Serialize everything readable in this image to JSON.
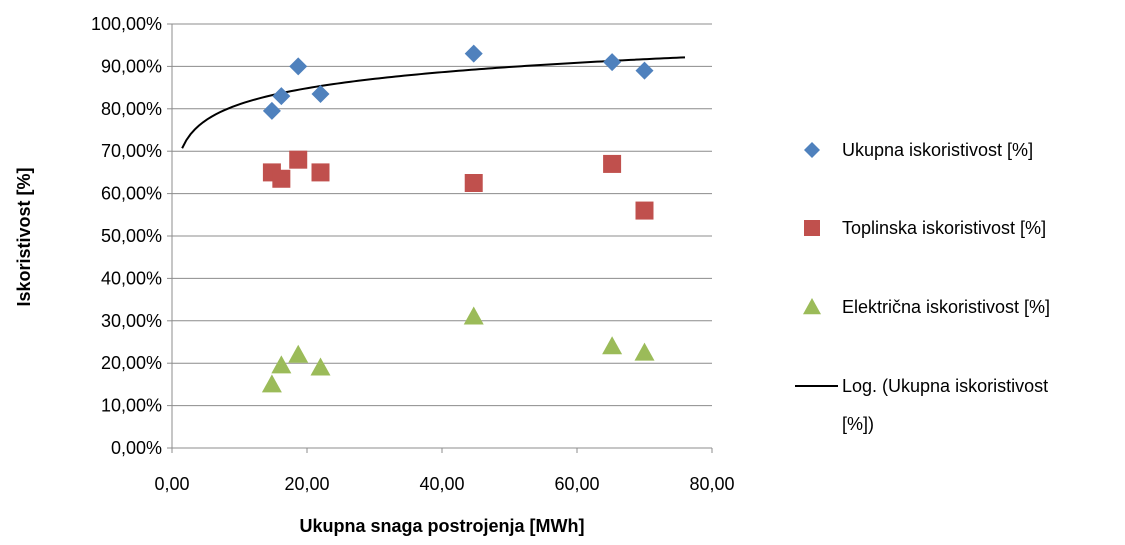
{
  "chart_data": {
    "type": "scatter",
    "xlabel": "Ukupna snaga postrojenja [MWh]",
    "ylabel": "Iskoristivost [%]",
    "xlim": [
      0,
      80
    ],
    "ylim": [
      0,
      100
    ],
    "x_ticks": [
      "0,00",
      "20,00",
      "40,00",
      "60,00",
      "80,00"
    ],
    "y_ticks": [
      "0,00%",
      "10,00%",
      "20,00%",
      "30,00%",
      "40,00%",
      "50,00%",
      "60,00%",
      "70,00%",
      "80,00%",
      "90,00%",
      "100,00%"
    ],
    "grid": "horizontal",
    "legend_position": "right",
    "series": [
      {
        "name": "Ukupna iskoristivost [%]",
        "marker": "diamond",
        "color": "#4f81bd",
        "points": [
          [
            14.8,
            79.5
          ],
          [
            16.2,
            83.0
          ],
          [
            18.7,
            90.0
          ],
          [
            22.0,
            83.5
          ],
          [
            44.7,
            93.0
          ],
          [
            65.2,
            91.0
          ],
          [
            70.0,
            89.0
          ]
        ]
      },
      {
        "name": "Toplinska iskoristivost [%]",
        "marker": "square",
        "color": "#c0504d",
        "points": [
          [
            14.8,
            65.0
          ],
          [
            16.2,
            63.5
          ],
          [
            18.7,
            68.0
          ],
          [
            22.0,
            65.0
          ],
          [
            44.7,
            62.5
          ],
          [
            65.2,
            67.0
          ],
          [
            70.0,
            56.0
          ]
        ]
      },
      {
        "name": "Električna iskoristivost [%]",
        "marker": "triangle",
        "color": "#9bbb59",
        "points": [
          [
            14.8,
            15.0
          ],
          [
            16.2,
            19.5
          ],
          [
            18.7,
            22.0
          ],
          [
            22.0,
            19.0
          ],
          [
            44.7,
            31.0
          ],
          [
            65.2,
            24.0
          ],
          [
            70.0,
            22.5
          ]
        ]
      }
    ],
    "trendline": {
      "name_lines": [
        "Log. (Ukupna iskoristivost",
        "[%])"
      ],
      "type": "logarithmic",
      "color": "#000000",
      "x_range": [
        1.5,
        76
      ]
    }
  }
}
